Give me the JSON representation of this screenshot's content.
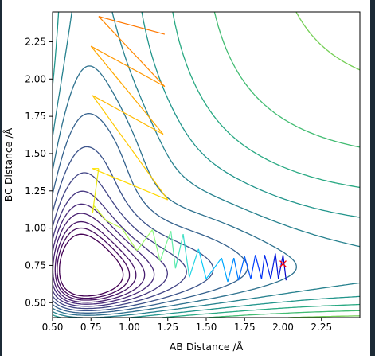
{
  "chart_data": {
    "type": "contour",
    "title": "",
    "xlabel": "AB Distance /Å",
    "ylabel": "BC Distance /Å",
    "xlim": [
      0.5,
      2.5
    ],
    "ylim": [
      0.4,
      2.45
    ],
    "xticks": [
      0.5,
      0.75,
      1.0,
      1.25,
      1.5,
      1.75,
      2.0,
      2.25
    ],
    "yticks": [
      0.5,
      0.75,
      1.0,
      1.25,
      1.5,
      1.75,
      2.0,
      2.25
    ],
    "xtick_labels": [
      "0.50",
      "0.75",
      "1.00",
      "1.25",
      "1.50",
      "1.75",
      "2.00",
      "2.25"
    ],
    "ytick_labels": [
      "0.50",
      "0.75",
      "1.00",
      "1.25",
      "1.50",
      "1.75",
      "2.00",
      "2.25"
    ],
    "grid": false,
    "legend": "none",
    "colormap": "viridis",
    "contour_levels": [
      0.04,
      0.08,
      0.12,
      0.17,
      0.22,
      0.28,
      0.35,
      0.43,
      0.52,
      0.62,
      0.73,
      0.85,
      0.98,
      1.12,
      1.27,
      1.43,
      1.6
    ],
    "trajectory": {
      "color": "#0000ff",
      "points": [
        [
          2.02,
          0.65
        ],
        [
          2.0,
          0.82
        ],
        [
          1.97,
          0.66
        ],
        [
          1.95,
          0.83
        ],
        [
          1.92,
          0.66
        ],
        [
          1.88,
          0.82
        ],
        [
          1.86,
          0.66
        ],
        [
          1.82,
          0.82
        ],
        [
          1.79,
          0.66
        ],
        [
          1.75,
          0.81
        ],
        [
          1.71,
          0.65
        ],
        [
          1.68,
          0.8
        ],
        [
          1.64,
          0.64
        ],
        [
          1.6,
          0.8
        ],
        [
          1.5,
          0.66
        ],
        [
          1.45,
          0.86
        ],
        [
          1.39,
          0.67
        ],
        [
          1.35,
          0.96
        ],
        [
          1.3,
          0.73
        ],
        [
          1.27,
          0.98
        ],
        [
          1.2,
          0.78
        ],
        [
          1.15,
          0.99
        ],
        [
          1.05,
          0.85
        ],
        [
          0.95,
          1.0
        ],
        [
          0.85,
          1.05
        ],
        [
          0.77,
          1.15
        ],
        [
          0.76,
          1.1
        ],
        [
          0.8,
          1.4
        ],
        [
          0.76,
          1.4
        ],
        [
          1.25,
          1.19
        ],
        [
          0.76,
          1.89
        ],
        [
          1.22,
          1.63
        ],
        [
          0.75,
          2.22
        ],
        [
          1.23,
          1.95
        ],
        [
          0.8,
          2.42
        ],
        [
          1.23,
          2.3
        ]
      ]
    },
    "start_marker": {
      "x": 2.0,
      "y": 0.76,
      "symbol": "x",
      "color": "#ff0000"
    }
  }
}
